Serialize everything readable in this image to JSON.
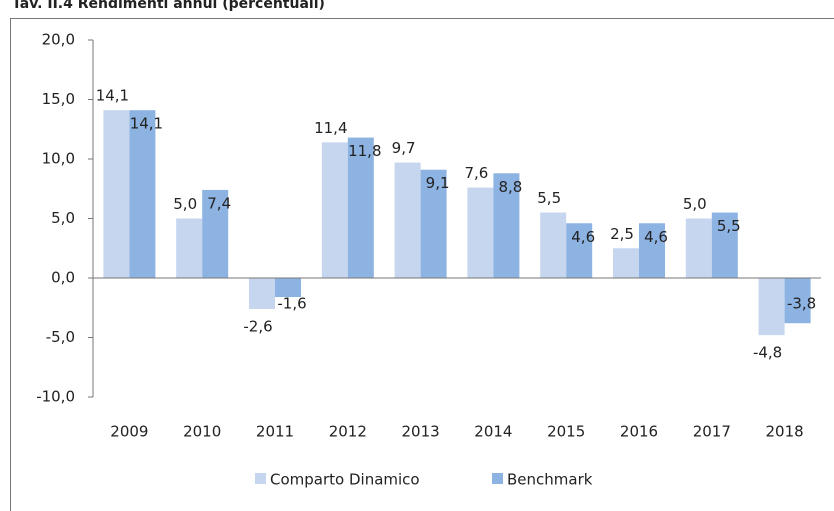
{
  "chart_data": {
    "type": "bar",
    "title": "Tav. II.4 Rendimenti annui (percentuali)",
    "categories": [
      "2009",
      "2010",
      "2011",
      "2012",
      "2013",
      "2014",
      "2015",
      "2016",
      "2017",
      "2018"
    ],
    "series": [
      {
        "name": "Comparto Dinamico",
        "color": "#c6d6ef",
        "values": [
          14.1,
          5.0,
          -2.6,
          11.4,
          9.7,
          7.6,
          5.5,
          2.5,
          5.0,
          -4.8
        ],
        "value_labels": [
          "14,1",
          "5,0",
          "-2,6",
          "11,4",
          "9,7",
          "7,6",
          "5,5",
          "2,5",
          "5,0",
          "-4,8"
        ]
      },
      {
        "name": "Benchmark",
        "color": "#8db3e2",
        "values": [
          14.1,
          7.4,
          -1.6,
          11.8,
          9.1,
          8.8,
          4.6,
          4.6,
          5.5,
          -3.8
        ],
        "value_labels": [
          "14,1",
          "7,4",
          "-1,6",
          "11,8",
          "9,1",
          "8,8",
          "4,6",
          "4,6",
          "5,5",
          "-3,8"
        ]
      }
    ],
    "ylim": [
      -10,
      20
    ],
    "yticks": [
      {
        "value": -10,
        "label": "-10,0"
      },
      {
        "value": -5,
        "label": "-5,0"
      },
      {
        "value": 0,
        "label": "0,0"
      },
      {
        "value": 5,
        "label": "5,0"
      },
      {
        "value": 10,
        "label": "10,0"
      },
      {
        "value": 15,
        "label": "15,0"
      },
      {
        "value": 20,
        "label": "20,0"
      }
    ],
    "legend": "bottom"
  }
}
